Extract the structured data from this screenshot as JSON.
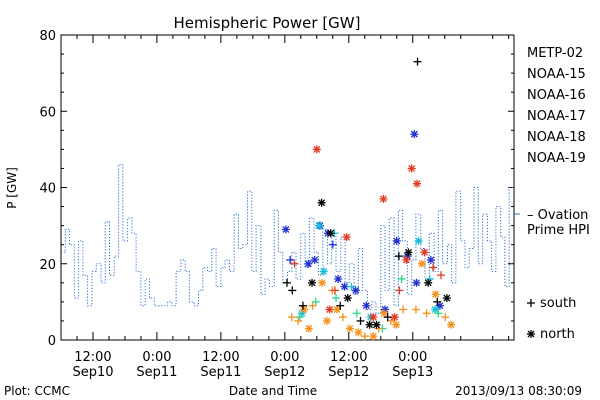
{
  "chart_data": {
    "type": "scatter",
    "title": "Hemispheric Power [GW]",
    "ylabel": "P [GW]",
    "xlabel": "Date and Time",
    "ylim": [
      0,
      80
    ],
    "yticks": [
      0,
      20,
      40,
      60,
      80
    ],
    "x_unit": "hours since 2013-09-10 00:00 UT",
    "xlim": [
      6,
      91
    ],
    "xticks": [
      {
        "x": 12,
        "line1": "12:00",
        "line2": "Sep10"
      },
      {
        "x": 24,
        "line1": "0:00",
        "line2": "Sep11"
      },
      {
        "x": 36,
        "line1": "12:00",
        "line2": "Sep11"
      },
      {
        "x": 48,
        "line1": "0:00",
        "line2": "Sep12"
      },
      {
        "x": 60,
        "line1": "12:00",
        "line2": "Sep12"
      },
      {
        "x": 72,
        "line1": "0:00",
        "line2": "Sep13"
      }
    ],
    "grid": false,
    "legend_position": "right",
    "legend_header": "METP-02",
    "footer_left": "Plot: CCMC",
    "footer_right": "2013/09/13 08:30:09",
    "marker_legend": [
      {
        "symbol": "+",
        "label": "south"
      },
      {
        "symbol": "*",
        "label": "north"
      }
    ],
    "series": [
      {
        "name": "Ovation Prime HPI",
        "label": "– Ovation Prime HPI",
        "kind": "step",
        "color": "#2a6fd6",
        "x": [
          6,
          6.8,
          7.6,
          8.5,
          9.3,
          10.1,
          11.0,
          11.8,
          12.6,
          13.5,
          14.3,
          15.1,
          16.0,
          16.8,
          17.6,
          18.5,
          19.3,
          20.1,
          21.0,
          21.8,
          22.6,
          23.5,
          24.3,
          25.1,
          26.0,
          26.8,
          27.6,
          28.5,
          29.3,
          30.1,
          31.0,
          31.8,
          32.6,
          33.5,
          34.3,
          35.1,
          36.0,
          36.8,
          37.6,
          38.5,
          39.3,
          40.1,
          41.0,
          41.8,
          42.6,
          43.5,
          44.3,
          45.1,
          46.0,
          46.8,
          47.6,
          48.5,
          49.3,
          50.1,
          51.0,
          51.8,
          52.6,
          53.5,
          54.3,
          55.1,
          56.0,
          56.8,
          57.6,
          58.5,
          59.3,
          60.1,
          61.0,
          61.8,
          62.6,
          63.5,
          64.3,
          65.1,
          66.0,
          66.8,
          67.6,
          68.5,
          69.3,
          70.1,
          71.0,
          71.8,
          72.6,
          73.5,
          74.3,
          75.1,
          76.0,
          76.8,
          77.6,
          78.5,
          79.3,
          80.1,
          81.0,
          81.8,
          82.6,
          83.5,
          84.3,
          85.1,
          86.0,
          86.8,
          87.6,
          88.5,
          89.3,
          90.1
        ],
        "values": [
          23,
          29,
          25,
          11,
          26,
          17,
          9,
          18,
          20,
          15,
          31,
          17,
          22,
          46,
          26,
          32,
          28,
          18,
          9,
          16,
          11,
          9,
          9,
          9,
          10,
          9,
          18,
          21,
          18,
          10,
          9,
          13,
          19,
          18,
          24,
          14,
          19,
          21,
          18,
          33,
          24,
          25,
          39,
          18,
          30,
          12,
          16,
          14,
          34,
          23,
          15,
          18,
          23,
          16,
          28,
          19,
          32,
          23,
          17,
          29,
          20,
          28,
          18,
          27,
          15,
          20,
          12,
          24,
          13,
          8,
          10,
          7,
          30,
          13,
          32,
          9,
          34,
          26,
          12,
          21,
          33,
          24,
          16,
          28,
          18,
          34,
          20,
          25,
          15,
          39,
          26,
          19,
          24,
          40,
          20,
          33,
          26,
          18,
          35,
          27,
          14,
          40
        ]
      },
      {
        "name": "NOAA-15",
        "color": "#1f2fd0",
        "x": [
          48.2,
          49.0,
          52.4,
          53.6,
          54.6,
          56.1,
          57.0,
          58.0,
          59.2,
          61.3,
          63.3,
          66.8,
          69.0,
          71.0,
          72.3,
          72.7,
          75.4,
          77.1
        ],
        "values": [
          29,
          21,
          20,
          21,
          30,
          28,
          25,
          16,
          14,
          13,
          9,
          8,
          26,
          22,
          54,
          15,
          21,
          9
        ],
        "markers": [
          "*",
          "+",
          "*",
          "*",
          "*",
          "*",
          "+",
          "*",
          "*",
          "*",
          "*",
          "*",
          "*",
          "*",
          "*",
          "*",
          "*",
          "*"
        ]
      },
      {
        "name": "NOAA-16",
        "color": "#18c0d8",
        "x": [
          51.2,
          54.4,
          55.3,
          57.3,
          60.5,
          64.1,
          73.1,
          75.2,
          76.2
        ],
        "values": [
          7,
          30,
          18,
          28,
          14,
          6,
          26,
          16,
          8
        ],
        "markers": [
          "*",
          "*",
          "*",
          "+",
          "+",
          "*",
          "*",
          "+",
          "*"
        ]
      },
      {
        "name": "NOAA-17",
        "color": "#28d88a",
        "x": [
          50.8,
          53.8,
          57.6,
          61.5,
          66.3,
          69.9,
          76.8
        ],
        "values": [
          6,
          10,
          11,
          7,
          3,
          16,
          7
        ],
        "markers": [
          "+",
          "+",
          "+",
          "+",
          "+",
          "+",
          "+"
        ]
      },
      {
        "name": "NOAA-18",
        "color": "#f39018",
        "x": [
          49.3,
          50.5,
          51.6,
          52.5,
          53.2,
          55.0,
          55.9,
          56.9,
          57.8,
          58.9,
          60.2,
          61.8,
          63.0,
          64.6,
          65.6,
          66.6,
          67.9,
          68.9,
          70.2,
          72.6,
          73.7,
          74.6,
          76.3,
          78.1,
          79.2
        ],
        "values": [
          6,
          5,
          8,
          3,
          9,
          15,
          5,
          13,
          8,
          6,
          3,
          2,
          1,
          1,
          3,
          7,
          5,
          4,
          8,
          8,
          20,
          7,
          12,
          6,
          4
        ],
        "markers": [
          "+",
          "+",
          "*",
          "*",
          "+",
          "*",
          "*",
          "+",
          "*",
          "+",
          "*",
          "*",
          "+",
          "*",
          "+",
          "*",
          "+",
          "*",
          "+",
          "+",
          "*",
          "+",
          "*",
          "+",
          "*"
        ]
      },
      {
        "name": "NOAA-19",
        "color": "#e23a20",
        "x": [
          49.8,
          54.0,
          56.4,
          57.4,
          59.6,
          64.6,
          66.5,
          68.6,
          69.5,
          70.8,
          71.8,
          72.8,
          74.2,
          75.8,
          77.3
        ],
        "values": [
          20,
          50,
          8,
          13,
          27,
          6,
          37,
          6,
          13,
          21,
          45,
          41,
          23,
          19,
          17
        ],
        "markers": [
          "+",
          "*",
          "*",
          "+",
          "*",
          "*",
          "*",
          "*",
          "+",
          "*",
          "*",
          "*",
          "*",
          "+",
          "+"
        ]
      },
      {
        "name": "METP-02",
        "color": "#000000",
        "x": [
          48.4,
          49.4,
          51.4,
          53.1,
          54.9,
          56.6,
          58.4,
          59.8,
          62.2,
          63.9,
          65.2,
          67.3,
          69.4,
          71.2,
          72.9,
          74.9,
          76.6,
          78.4
        ],
        "values": [
          15,
          13,
          9,
          15,
          36,
          28,
          9,
          11,
          5,
          4,
          4,
          6,
          22,
          23,
          73,
          15,
          10,
          11
        ],
        "markers": [
          "+",
          "+",
          "+",
          "*",
          "*",
          "*",
          "+",
          "*",
          "+",
          "*",
          "*",
          "+",
          "+",
          "*",
          "+",
          "*",
          "+",
          "*"
        ]
      }
    ]
  }
}
